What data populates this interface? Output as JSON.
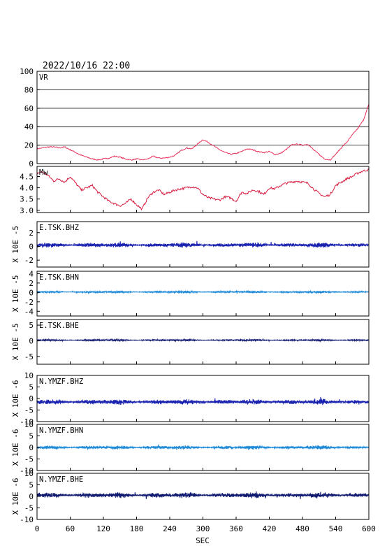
{
  "header": {
    "datetime": "2022/10/16 22:00"
  },
  "x_axis": {
    "label": "SEC",
    "min": 0,
    "max": 600,
    "ticks": [
      "0",
      "60",
      "120",
      "180",
      "240",
      "300",
      "360",
      "420",
      "480",
      "540",
      "600"
    ]
  },
  "chart_data": [
    {
      "type": "line",
      "label": "VR",
      "ylim": [
        0,
        100
      ],
      "yticks": [
        "0",
        "20",
        "40",
        "60",
        "80",
        "100"
      ],
      "grid": true,
      "color": "#e8305a",
      "x": [
        0,
        10,
        20,
        30,
        40,
        50,
        60,
        70,
        80,
        90,
        100,
        110,
        120,
        130,
        140,
        150,
        160,
        170,
        180,
        190,
        200,
        210,
        220,
        230,
        240,
        250,
        260,
        270,
        280,
        290,
        300,
        310,
        320,
        330,
        340,
        350,
        360,
        370,
        380,
        390,
        400,
        410,
        420,
        430,
        440,
        450,
        460,
        470,
        480,
        490,
        500,
        510,
        520,
        530,
        540,
        550,
        560,
        570,
        580,
        590,
        600
      ],
      "y": [
        16,
        17,
        18,
        18,
        17,
        18,
        15,
        12,
        9,
        7,
        5,
        4,
        5,
        6,
        8,
        7,
        5,
        4,
        5,
        4,
        5,
        8,
        6,
        6,
        7,
        9,
        14,
        17,
        16,
        21,
        26,
        23,
        19,
        15,
        12,
        10,
        11,
        13,
        16,
        15,
        13,
        12,
        13,
        10,
        11,
        15,
        20,
        21,
        20,
        21,
        15,
        10,
        5,
        4,
        10,
        17,
        23,
        31,
        38,
        47,
        64
      ]
    },
    {
      "type": "line",
      "label": "Mw",
      "ylim": [
        2.9,
        4.95
      ],
      "yticks": [
        "3.0",
        "3.5",
        "4.0",
        "4.5"
      ],
      "grid": false,
      "color": "#d81c40",
      "x": [
        0,
        10,
        20,
        30,
        40,
        50,
        60,
        70,
        80,
        90,
        100,
        110,
        120,
        130,
        140,
        150,
        160,
        170,
        180,
        190,
        200,
        210,
        220,
        230,
        240,
        250,
        260,
        270,
        280,
        290,
        300,
        310,
        320,
        330,
        340,
        350,
        360,
        370,
        380,
        390,
        400,
        410,
        420,
        430,
        440,
        450,
        460,
        470,
        480,
        490,
        500,
        510,
        520,
        530,
        540,
        550,
        560,
        570,
        580,
        590,
        600
      ],
      "y": [
        4.65,
        4.7,
        4.55,
        4.3,
        4.4,
        4.25,
        4.5,
        4.2,
        3.9,
        4.0,
        4.1,
        3.8,
        3.6,
        3.4,
        3.3,
        3.2,
        3.3,
        3.5,
        3.25,
        3.05,
        3.55,
        3.8,
        3.9,
        3.7,
        3.8,
        3.9,
        3.95,
        4.0,
        4.05,
        4.0,
        3.7,
        3.55,
        3.5,
        3.45,
        3.6,
        3.55,
        3.4,
        3.8,
        3.75,
        3.9,
        3.85,
        3.7,
        4.0,
        3.95,
        4.1,
        4.2,
        4.25,
        4.3,
        4.25,
        4.2,
        3.95,
        3.75,
        3.6,
        3.7,
        4.1,
        4.25,
        4.4,
        4.5,
        4.65,
        4.75,
        4.8
      ]
    },
    {
      "type": "line",
      "label": "E.TSK.BHZ",
      "ylabel": "X 10E -5",
      "ylim": [
        -3,
        3.6
      ],
      "yticks": [
        "-2",
        "0",
        "2"
      ],
      "color": "#1a22b0",
      "amplitude": 0.3,
      "offset": 0.2
    },
    {
      "type": "line",
      "label": "E.TSK.BHN",
      "ylabel": "X 10E -5",
      "ylim": [
        -5,
        4.5
      ],
      "yticks": [
        "-4",
        "-2",
        "0",
        "2",
        "4"
      ],
      "color": "#1e8ad8",
      "amplitude": 0.2,
      "offset": 0.1
    },
    {
      "type": "line",
      "label": "E.TSK.BHE",
      "ylabel": "X 10E -5",
      "ylim": [
        -7.5,
        6.8
      ],
      "yticks": [
        "-5",
        "0",
        "5"
      ],
      "color": "#101a70",
      "amplitude": 0.25,
      "offset": 0.2
    },
    {
      "type": "line",
      "label": "N.YMZF.BHZ",
      "ylabel": "X 10E -6",
      "ylim": [
        -10,
        10
      ],
      "yticks": [
        "-10",
        "-5",
        "0",
        "5",
        "10"
      ],
      "color": "#1a22b0",
      "amplitude": 1.0,
      "offset": -1.5
    },
    {
      "type": "line",
      "label": "N.YMZF.BHN",
      "ylabel": "X 10E -6",
      "ylim": [
        -10,
        10
      ],
      "yticks": [
        "-10",
        "-5",
        "0",
        "5",
        "10"
      ],
      "color": "#1e8ad8",
      "amplitude": 0.7,
      "offset": 0
    },
    {
      "type": "line",
      "label": "N.YMZF.BHE",
      "ylabel": "X 10E -6",
      "ylim": [
        -10,
        10
      ],
      "yticks": [
        "-10",
        "-5",
        "0",
        "5",
        "10"
      ],
      "color": "#101a70",
      "amplitude": 1.0,
      "offset": 0.5
    }
  ]
}
